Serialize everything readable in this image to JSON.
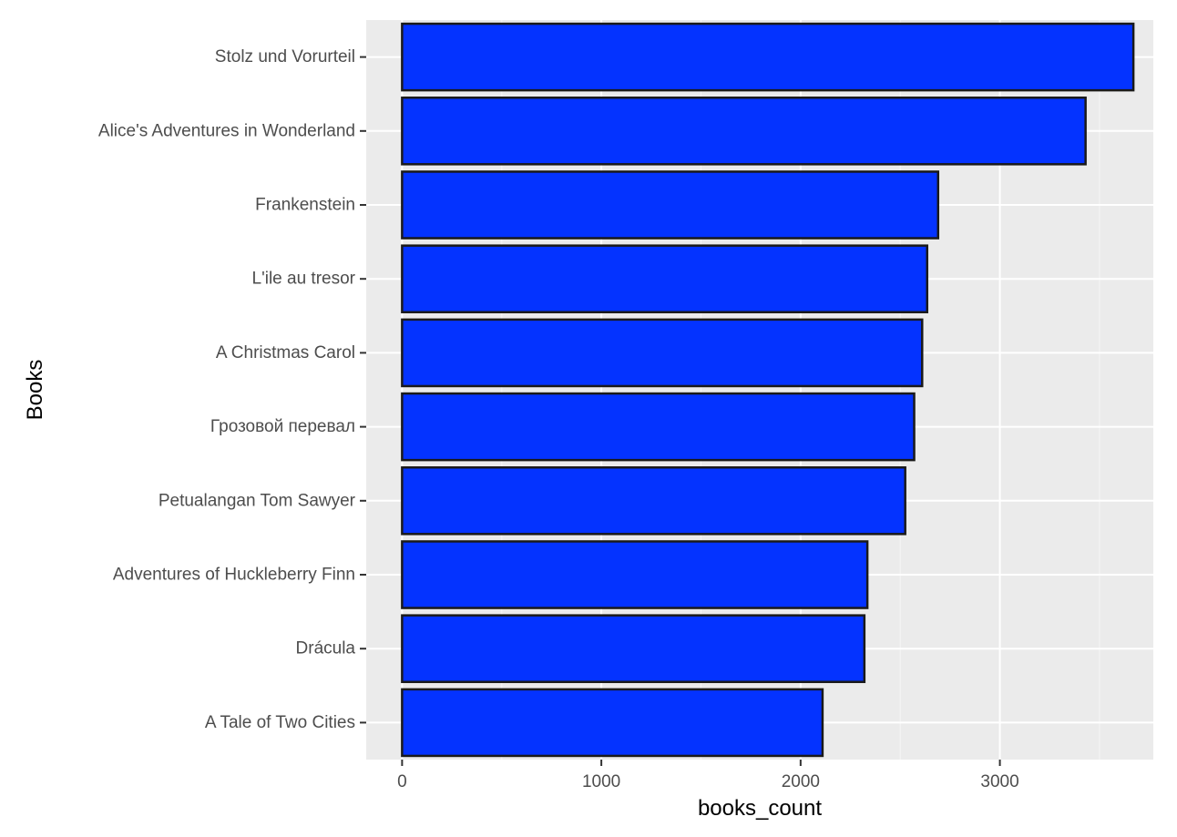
{
  "chart_data": {
    "type": "bar",
    "orientation": "horizontal",
    "title": "",
    "xlabel": "books_count",
    "ylabel": "Books",
    "categories": [
      "Stolz und Vorurteil",
      "Alice's Adventures in Wonderland",
      "Frankenstein",
      "L'ile au tresor",
      "A Christmas Carol",
      "Грозовой перевал",
      "Petualangan Tom Sawyer",
      "Adventures of Huckleberry Finn",
      "Drácula",
      "A Tale of Two Cities"
    ],
    "values": [
      3670,
      3430,
      2690,
      2635,
      2610,
      2570,
      2525,
      2335,
      2320,
      2110
    ],
    "xlim": [
      -180,
      3770
    ],
    "xticks": [
      0,
      1000,
      2000,
      3000
    ],
    "xtick_labels": [
      "0",
      "1000",
      "2000",
      "3000"
    ],
    "grid": true,
    "legend": "none",
    "colors": {
      "bar_fill": "#0433ff",
      "bar_stroke": "#1a1a1a",
      "panel_background": "#ebebeb",
      "grid_major": "#ffffff",
      "grid_minor": "#f5f5f5"
    }
  }
}
